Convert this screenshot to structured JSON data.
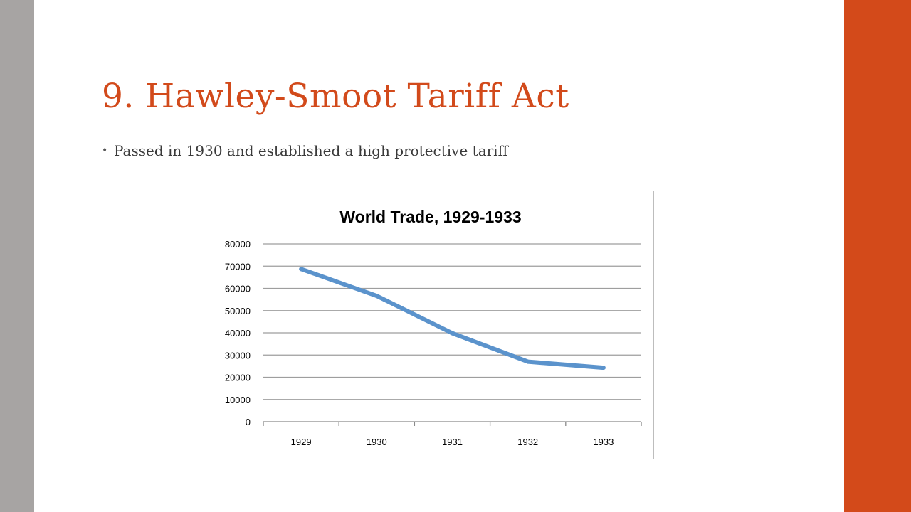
{
  "slide": {
    "title": "9. Hawley-Smoot Tariff Act",
    "bullets": [
      "Passed in 1930 and established a high protective tariff"
    ]
  },
  "colors": {
    "title": "#D24A1B",
    "right_bar": "#D34A1A",
    "left_bar": "#A7A4A3",
    "series": "#5B93CC",
    "gridline": "#9E9E9E"
  },
  "chart_data": {
    "type": "line",
    "title": "World Trade, 1929-1933",
    "categories": [
      "1929",
      "1930",
      "1931",
      "1932",
      "1933"
    ],
    "values": [
      68700,
      56600,
      39800,
      27000,
      24300
    ],
    "ylim": [
      0,
      80000
    ],
    "yticks": [
      0,
      10000,
      20000,
      30000,
      40000,
      50000,
      60000,
      70000,
      80000
    ],
    "grid": true,
    "legend": "none"
  }
}
